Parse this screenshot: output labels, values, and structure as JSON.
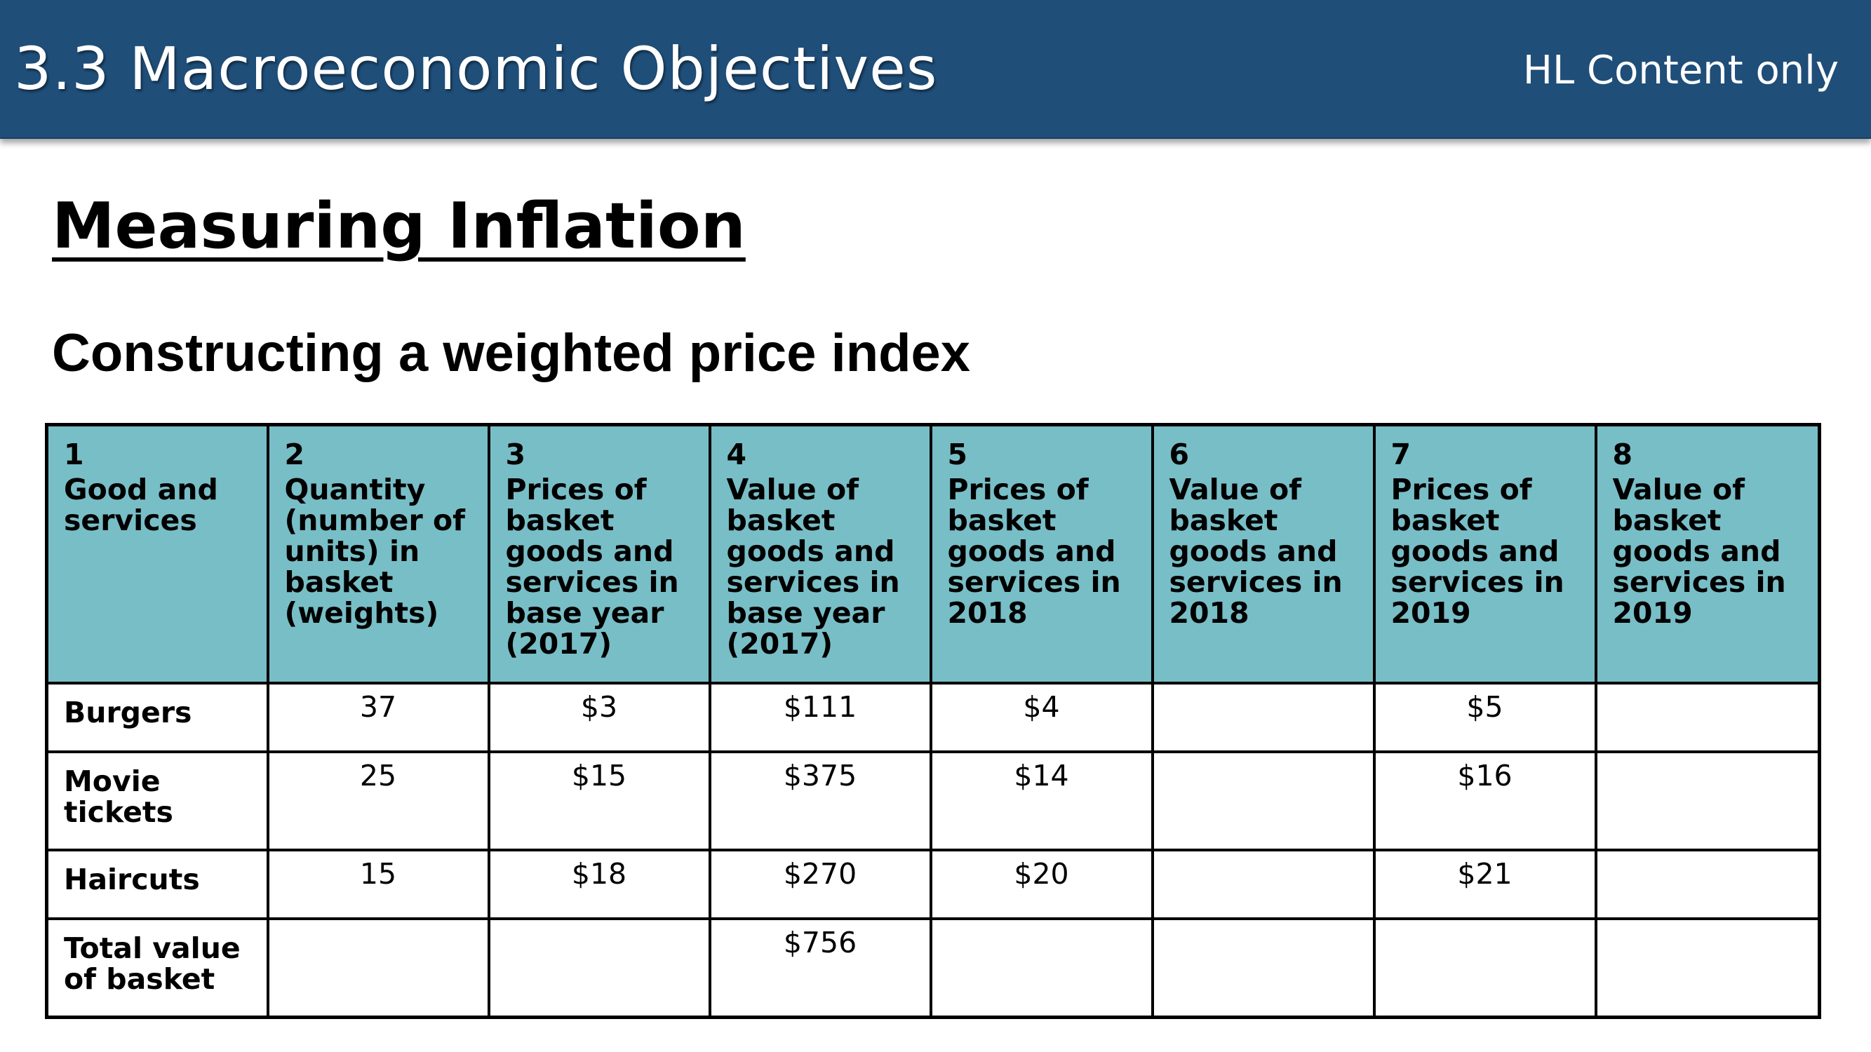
{
  "header": {
    "title": "3.3 Macroeconomic Objectives",
    "tag": "HL Content only",
    "bar_color": "#1f4e79"
  },
  "section_title": "Measuring Inflation",
  "subtitle": "Constructing a weighted price index",
  "table": {
    "header_color": "#78bec7",
    "columns": [
      {
        "number": "1",
        "label": "Good and services"
      },
      {
        "number": "2",
        "label": "Quantity (number of units) in basket (weights)"
      },
      {
        "number": "3",
        "label": "Prices of basket goods and services in base year (2017)"
      },
      {
        "number": "4",
        "label": "Value of basket goods and services in base year (2017)"
      },
      {
        "number": "5",
        "label": "Prices of basket goods and services in 2018"
      },
      {
        "number": "6",
        "label": "Value of basket goods and services in 2018"
      },
      {
        "number": "7",
        "label": "Prices of basket goods and services in 2019"
      },
      {
        "number": "8",
        "label": "Value of basket goods and services in 2019"
      }
    ],
    "rows": [
      {
        "label": "Burgers",
        "cells": [
          "37",
          "$3",
          "$111",
          "$4",
          "",
          "$5",
          ""
        ]
      },
      {
        "label": "Movie tickets",
        "cells": [
          "25",
          "$15",
          "$375",
          "$14",
          "",
          "$16",
          ""
        ]
      },
      {
        "label": "Haircuts",
        "cells": [
          "15",
          "$18",
          "$270",
          "$20",
          "",
          "$21",
          ""
        ]
      },
      {
        "label": "Total value of basket",
        "cells": [
          "",
          "",
          "$756",
          "",
          "",
          "",
          ""
        ]
      }
    ]
  }
}
